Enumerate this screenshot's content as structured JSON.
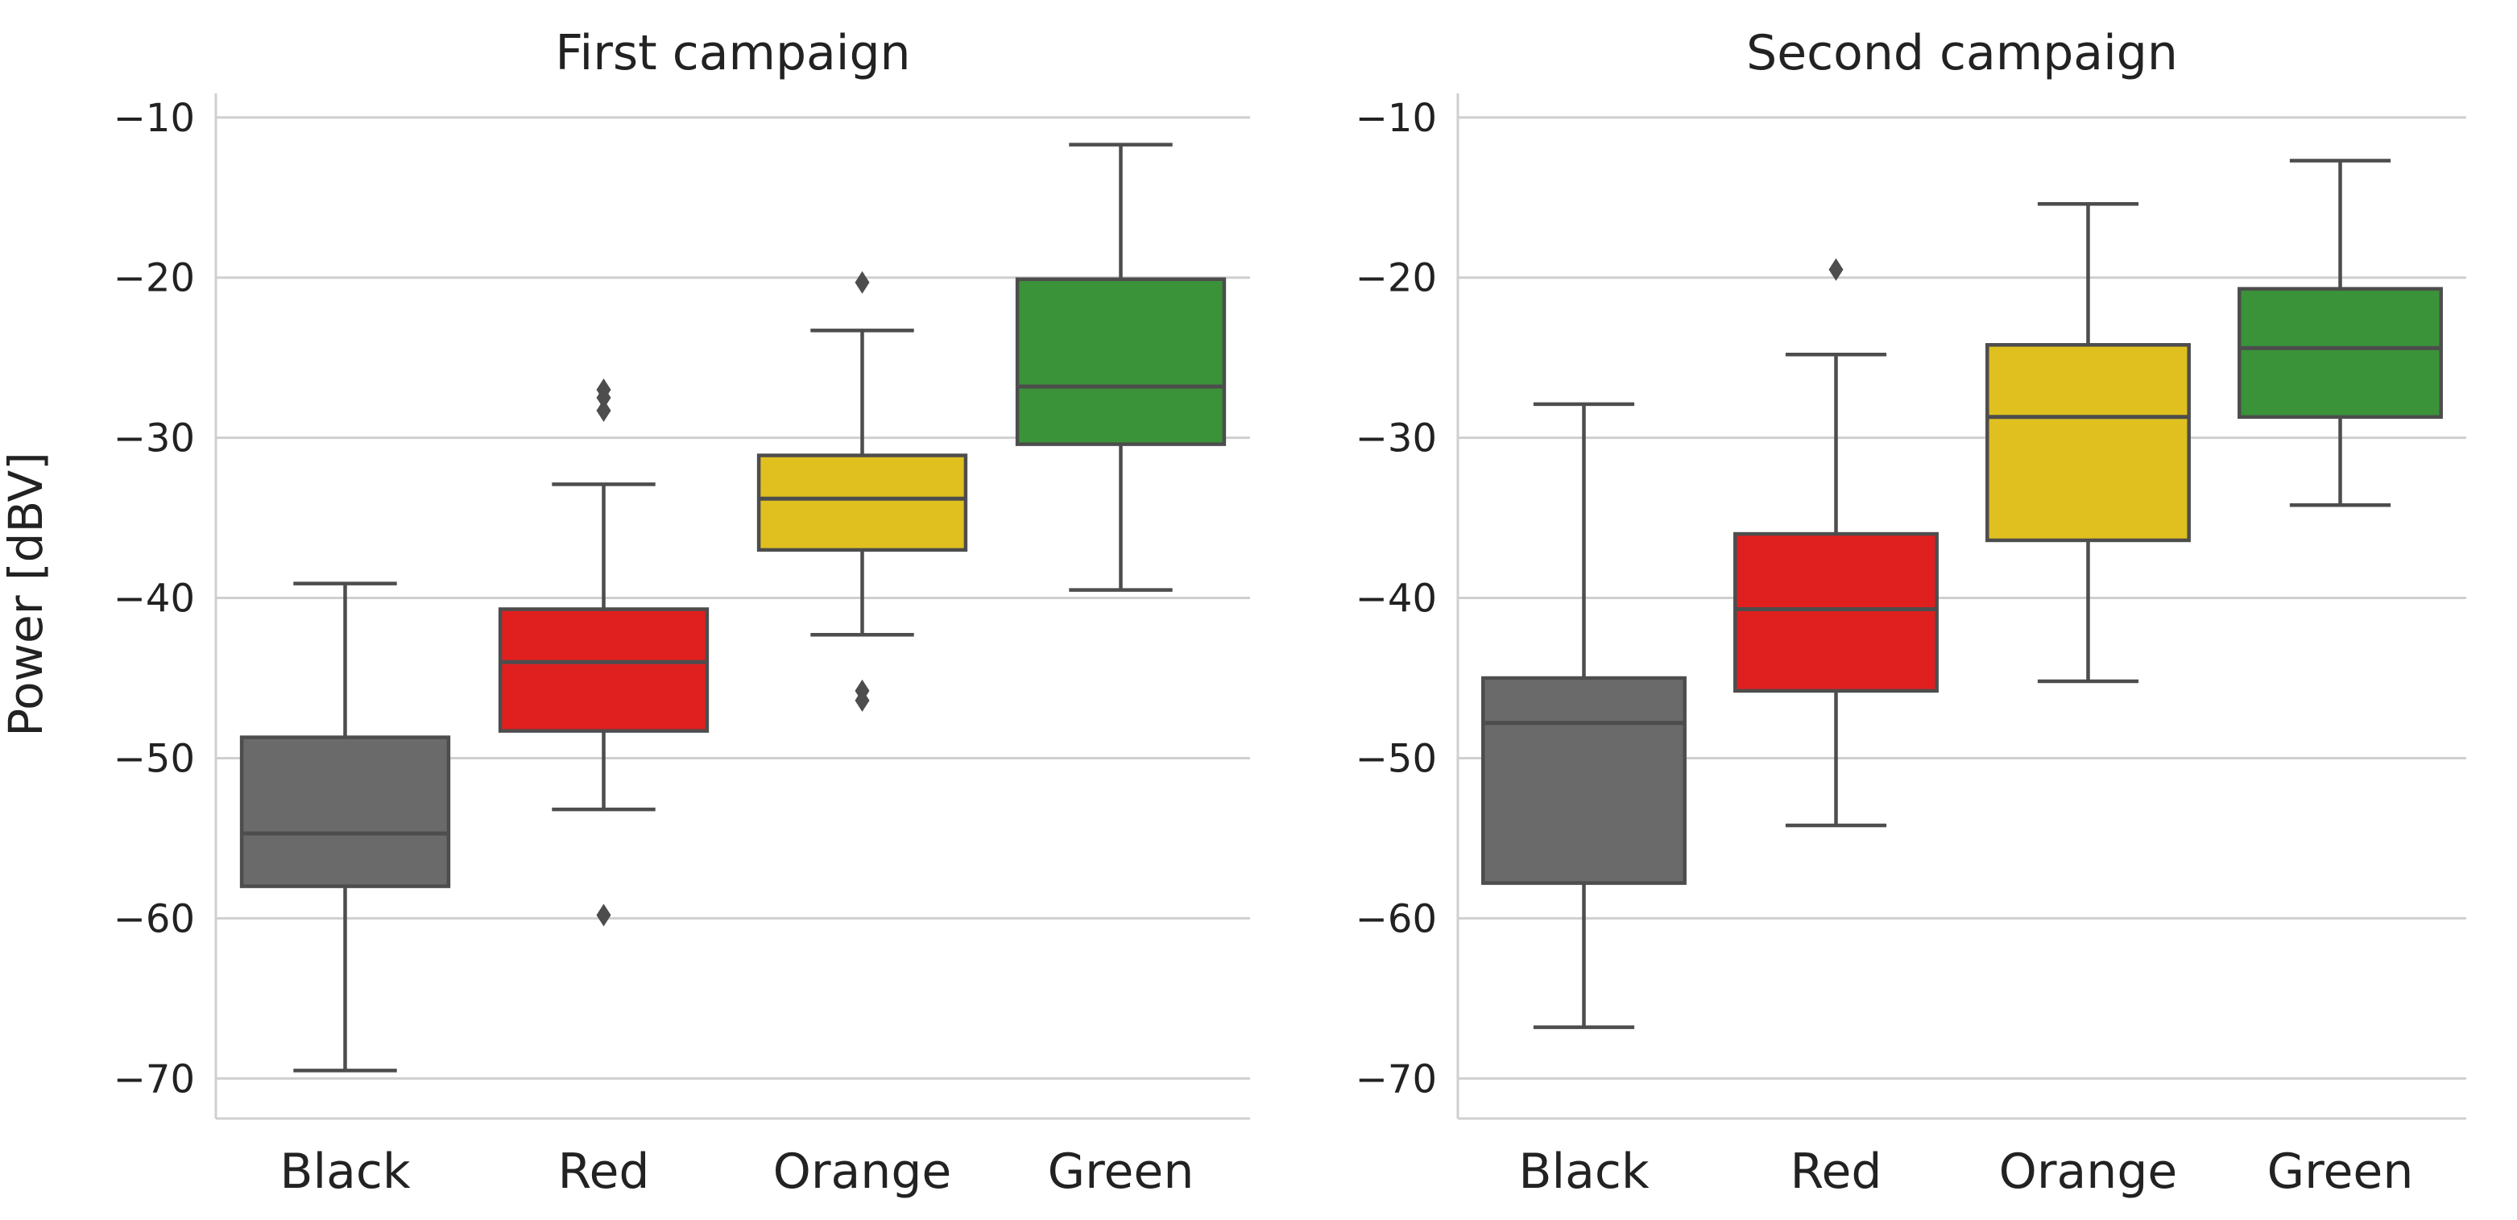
{
  "chart_data": {
    "type": "box",
    "ylabel": "Power [dBV]",
    "ylim": [
      -72.5,
      -8.5
    ],
    "yticks": [
      -10,
      -20,
      -30,
      -40,
      -50,
      -60,
      -70
    ],
    "ytick_labels": [
      "−10",
      "−20",
      "−30",
      "−40",
      "−50",
      "−60",
      "−70"
    ],
    "categories": [
      "Black",
      "Red",
      "Orange",
      "Green"
    ],
    "colors": [
      "#6a6a6a",
      "#e01f1f",
      "#e0c01f",
      "#3a9339"
    ],
    "grid": "horizontal",
    "panels": [
      {
        "title": "First campaign",
        "boxes": [
          {
            "category": "Black",
            "whisker_low": -69.5,
            "q1": -58.0,
            "median": -54.7,
            "q3": -48.7,
            "whisker_high": -39.1,
            "outliers": []
          },
          {
            "category": "Red",
            "whisker_low": -53.2,
            "q1": -48.3,
            "median": -44.0,
            "q3": -40.7,
            "whisker_high": -32.9,
            "outliers": [
              -59.8,
              -28.3,
              -27.5,
              -27.0
            ]
          },
          {
            "category": "Orange",
            "whisker_low": -42.3,
            "q1": -37.0,
            "median": -33.8,
            "q3": -31.1,
            "whisker_high": -23.3,
            "outliers": [
              -46.4,
              -45.8,
              -20.3
            ]
          },
          {
            "category": "Green",
            "whisker_low": -39.5,
            "q1": -30.4,
            "median": -26.8,
            "q3": -20.1,
            "whisker_high": -11.7,
            "outliers": []
          }
        ]
      },
      {
        "title": "Second campaign",
        "boxes": [
          {
            "category": "Black",
            "whisker_low": -66.8,
            "q1": -57.8,
            "median": -47.8,
            "q3": -45.0,
            "whisker_high": -27.9,
            "outliers": []
          },
          {
            "category": "Red",
            "whisker_low": -54.2,
            "q1": -45.8,
            "median": -40.7,
            "q3": -36.0,
            "whisker_high": -24.8,
            "outliers": [
              -19.5
            ]
          },
          {
            "category": "Orange",
            "whisker_low": -45.2,
            "q1": -36.4,
            "median": -28.7,
            "q3": -24.2,
            "whisker_high": -15.4,
            "outliers": []
          },
          {
            "category": "Green",
            "whisker_low": -34.2,
            "q1": -28.7,
            "median": -24.4,
            "q3": -20.7,
            "whisker_high": -12.7,
            "outliers": []
          }
        ]
      }
    ]
  }
}
